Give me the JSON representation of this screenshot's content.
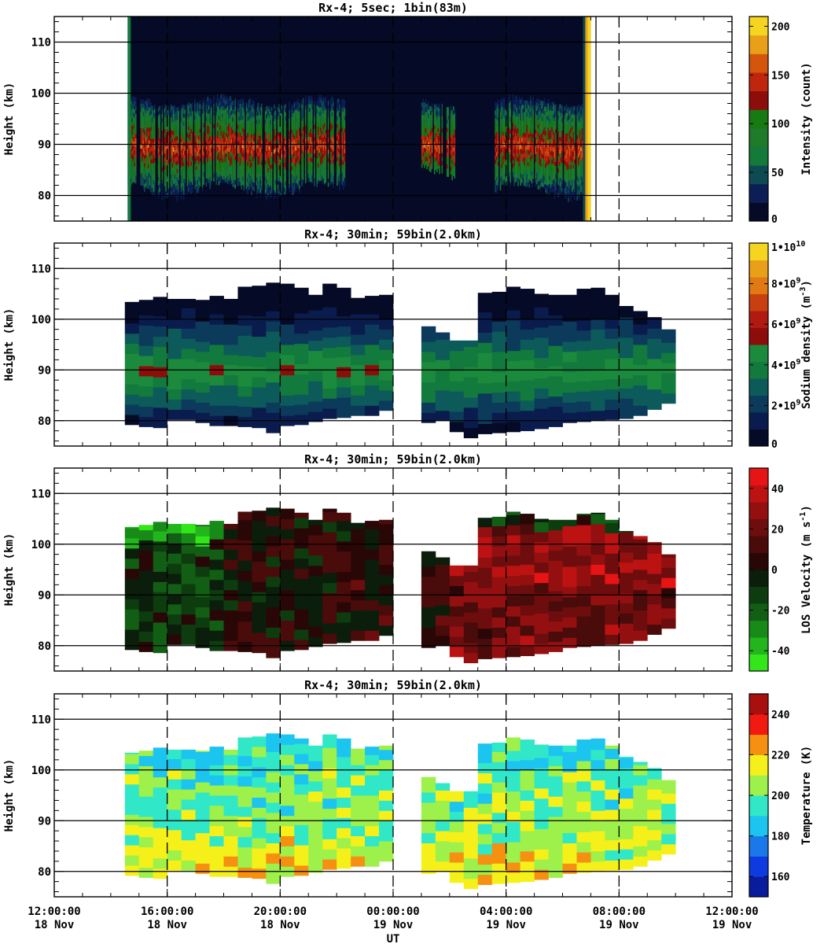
{
  "chart_data": {
    "type": "heatmap",
    "x_axis": {
      "label": "UT",
      "range": [
        "18 Nov 12:00:00",
        "19 Nov 12:00:00"
      ],
      "tick_times": [
        "12:00:00",
        "16:00:00",
        "20:00:00",
        "00:00:00",
        "04:00:00",
        "08:00:00",
        "12:00:00"
      ],
      "tick_dates": [
        "18 Nov",
        "18 Nov",
        "18 Nov",
        "19 Nov",
        "19 Nov",
        "19 Nov",
        "19 Nov"
      ],
      "tick_hours": [
        0,
        4,
        8,
        12,
        16,
        20,
        24
      ]
    },
    "y_axis": {
      "label": "Height (km)",
      "range": [
        75,
        115
      ],
      "ticks": [
        "80",
        "90",
        "100",
        "110"
      ],
      "tick_values": [
        80,
        90,
        100,
        110
      ]
    },
    "panels": [
      {
        "id": "intensity",
        "title": "Rx-4;  5sec; 1bin(83m)",
        "colorbar_label": "Intensity (count)",
        "colorbar_ticks": [
          "0",
          "50",
          "100",
          "150",
          "200"
        ],
        "colorbar_range": [
          0,
          210
        ],
        "colors": [
          "#050a26",
          "#0b1e55",
          "#0d4a52",
          "#137a3a",
          "#1f7a2a",
          "#177a12",
          "#8c0d0a",
          "#c0260e",
          "#d4560d",
          "#e8a019",
          "#f5d51f"
        ],
        "data_window_hours": [
          2.6,
          19.0
        ],
        "layer_profile": {
          "segments": [
            {
              "x_hours": [
                2.6,
                10.3
              ],
              "bottom_km": 81,
              "top_km": 98,
              "peak_km": 90
            },
            {
              "x_hours": [
                13.0,
                14.2
              ],
              "bottom_km": 84,
              "top_km": 97,
              "peak_km": 90
            },
            {
              "x_hours": [
                15.6,
                18.9
              ],
              "bottom_km": 81,
              "top_km": 98,
              "peak_km": 90
            }
          ]
        }
      },
      {
        "id": "density",
        "title": "Rx-4; 30min; 59bin(2.0km)",
        "colorbar_label": "Sodium density (m^-3)",
        "colorbar_ticks": [
          "0",
          "2•10^9",
          "4•10^9",
          "6•10^9",
          "8•10^9",
          "1•10^10"
        ],
        "colorbar_range": [
          0,
          10000000000
        ],
        "colors": [
          "#050a26",
          "#0a1c4d",
          "#0c3a5a",
          "#0d5a5a",
          "#127a3c",
          "#1c8a3c",
          "#8c0d0a",
          "#b01a10",
          "#c8400f",
          "#e07a12",
          "#e8a019",
          "#f5d51f"
        ]
      },
      {
        "id": "velocity",
        "title": "Rx-4; 30min; 59bin(2.0km)",
        "colorbar_label": "LOS Velocity (m s^-1)",
        "colorbar_ticks": [
          "-40",
          "-20",
          "0",
          "20",
          "40"
        ],
        "colorbar_range": [
          -50,
          50
        ],
        "colors": [
          "#33e61a",
          "#22b51c",
          "#188a18",
          "#125e14",
          "#0d3d0f",
          "#0b1d0b",
          "#2a0707",
          "#4a0b0b",
          "#6e0d0d",
          "#941010",
          "#bd1212",
          "#e61414"
        ]
      },
      {
        "id": "temperature",
        "title": "Rx-4; 30min; 59bin(2.0km)",
        "colorbar_label": "Temperature (K)",
        "colorbar_ticks": [
          "160",
          "180",
          "200",
          "220",
          "240"
        ],
        "colorbar_range": [
          150,
          250
        ],
        "colors": [
          "#081c9c",
          "#0d3be0",
          "#1a78e8",
          "#1cc4f0",
          "#30e8c8",
          "#9ef04a",
          "#f5f01a",
          "#f59010",
          "#f01a10",
          "#a81010"
        ]
      }
    ],
    "gridded_series": {
      "bin_width_hours": 0.5,
      "groups": [
        {
          "start_hour": 2.5,
          "bottom_km": [
            79.2,
            78.8,
            78.6,
            80.2,
            80.2,
            79.6,
            79.0,
            79.0,
            78.8,
            78.6,
            77.6,
            79.0,
            79.2,
            79.8,
            80.4,
            80.6,
            81.0,
            81.0,
            82.0
          ],
          "top_km": [
            103.4,
            103.8,
            104.4,
            104.0,
            104.0,
            103.8,
            104.6,
            104.0,
            106.4,
            106.6,
            107.2,
            107.0,
            106.2,
            104.8,
            107.0,
            106.2,
            104.2,
            104.6,
            104.8
          ]
        },
        {
          "start_hour": 13.0,
          "bottom_km": [
            79.6,
            80.0,
            77.8,
            76.6,
            77.4,
            77.6,
            77.8,
            78.0,
            78.4,
            78.8,
            79.6,
            79.8,
            80.0,
            80.2,
            80.4,
            81.0,
            82.2,
            83.4
          ],
          "top_km": [
            98.6,
            97.4,
            95.8,
            95.8,
            105.2,
            105.4,
            106.4,
            106.0,
            105.0,
            104.8,
            104.8,
            106.0,
            106.2,
            104.8,
            102.6,
            101.6,
            100.4,
            98.0
          ]
        }
      ]
    }
  }
}
